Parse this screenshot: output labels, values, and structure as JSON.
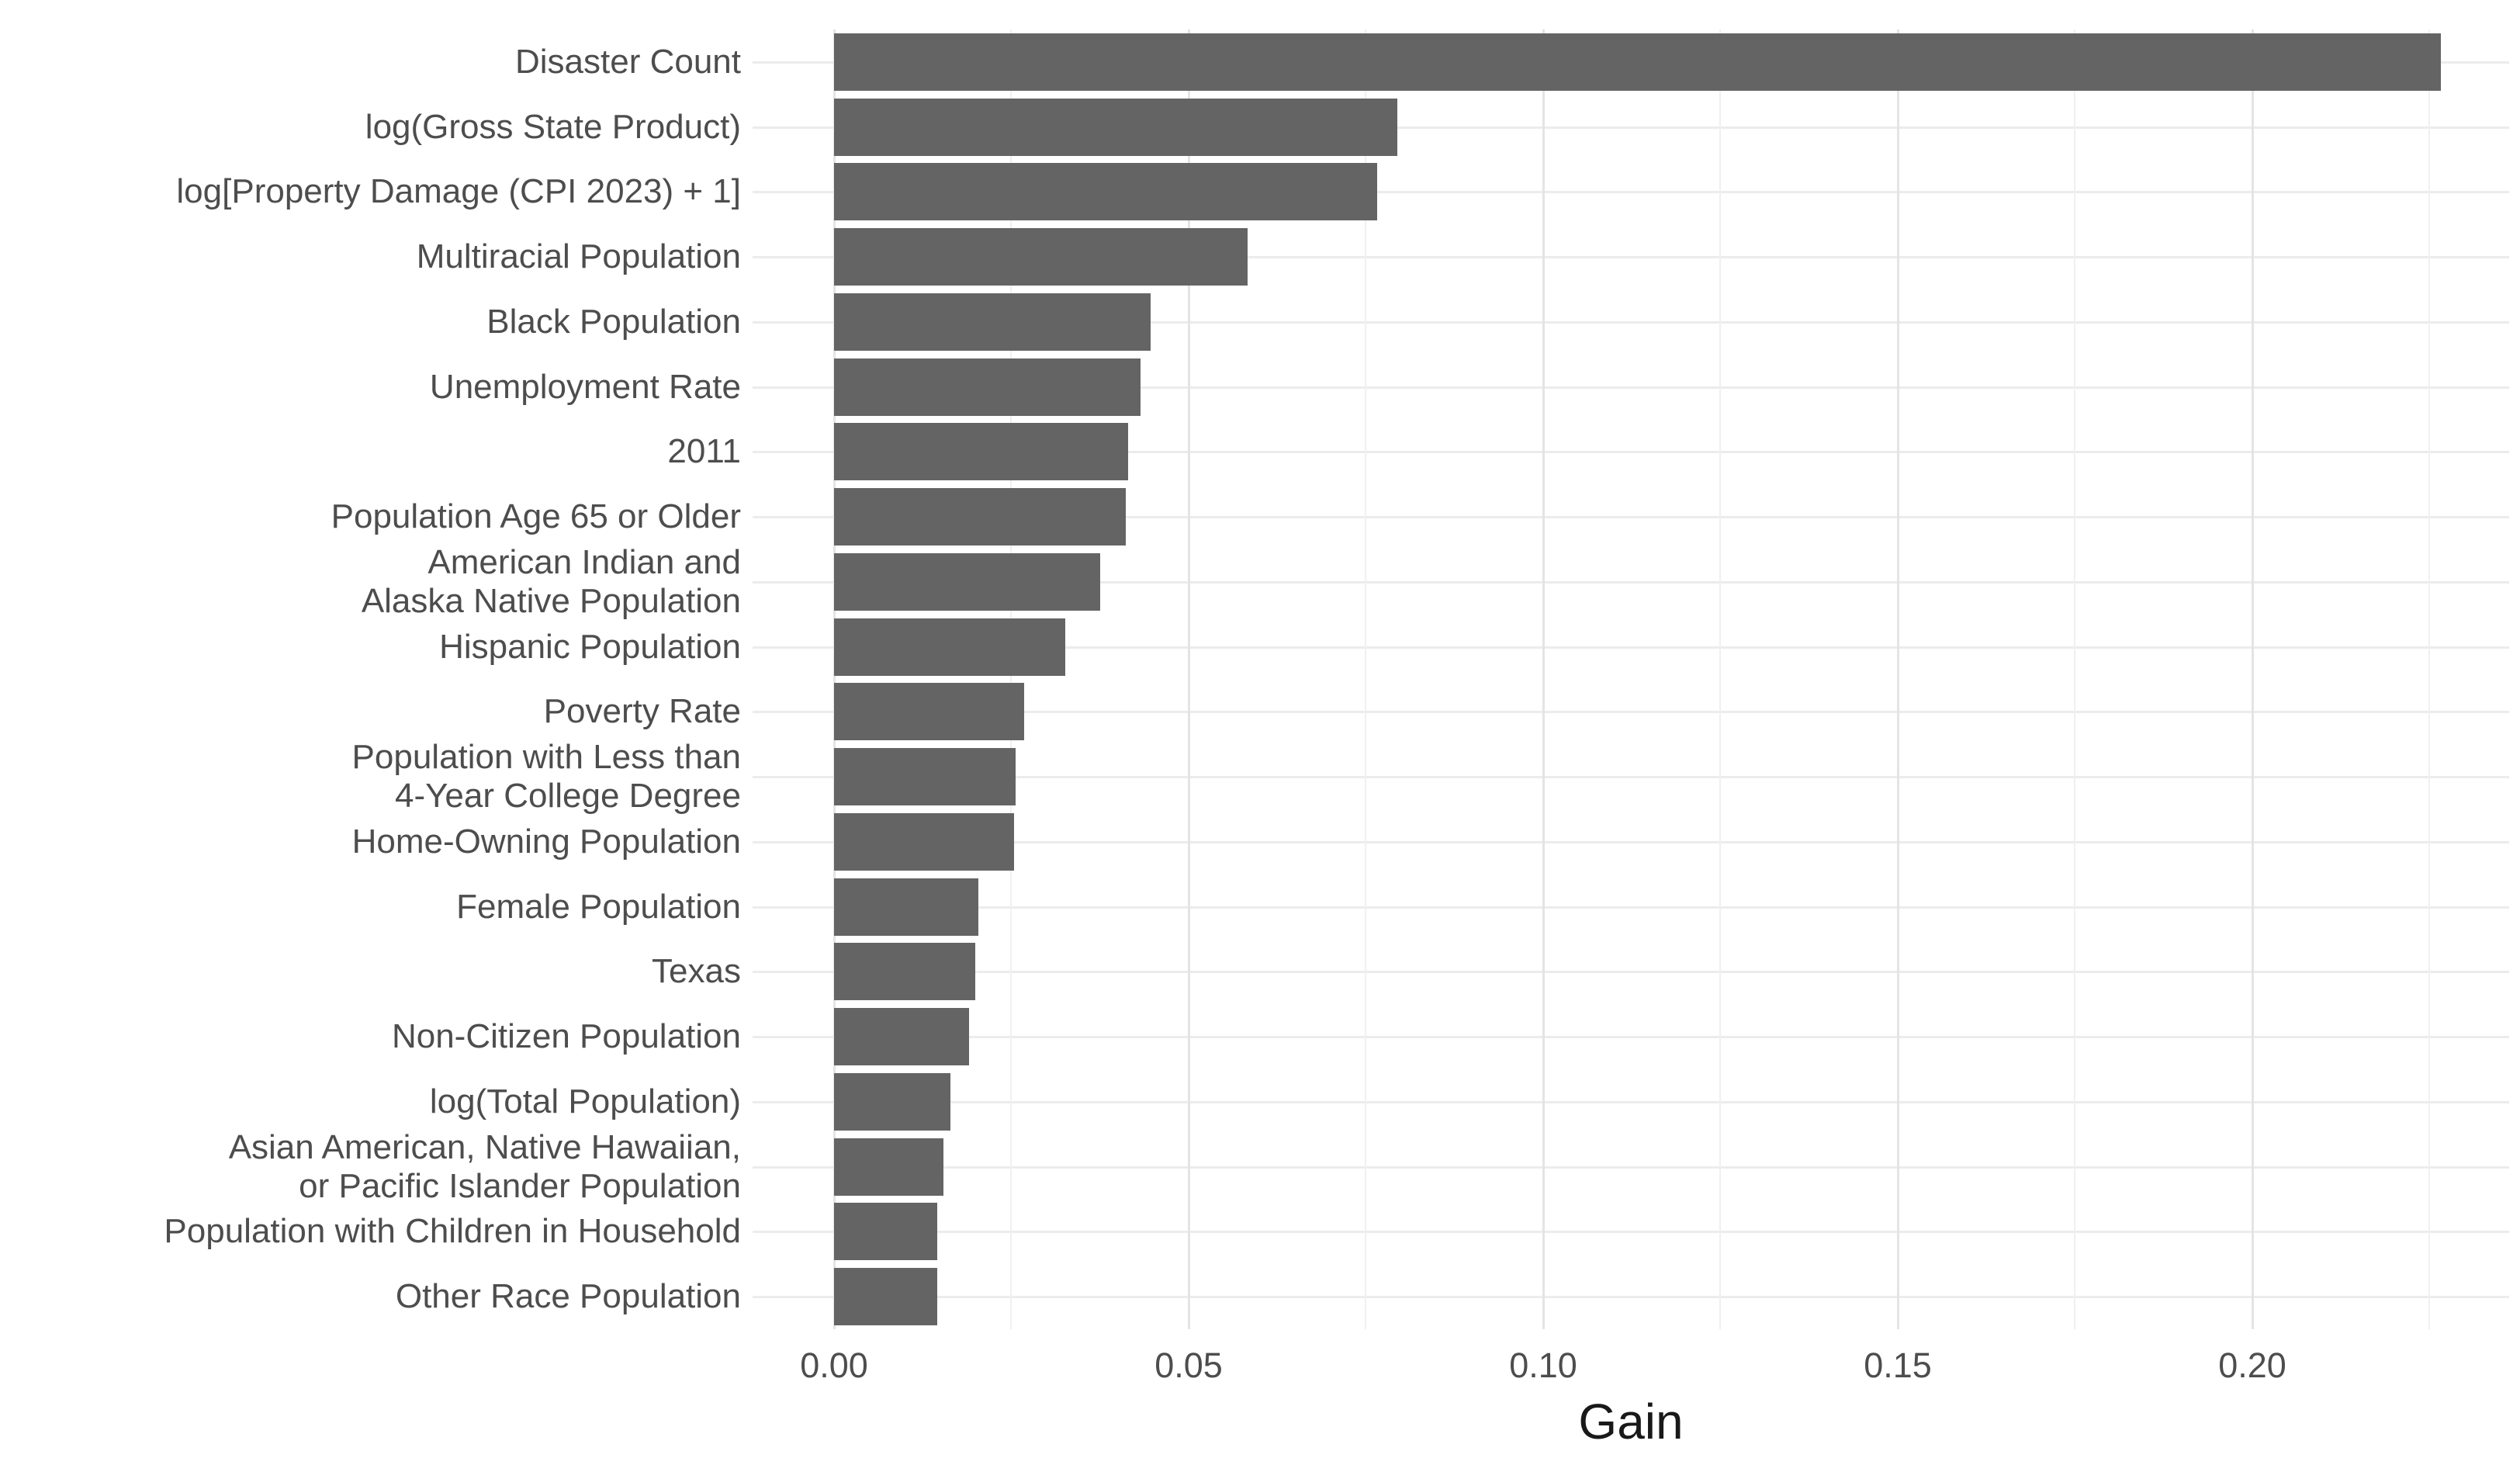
{
  "chart_data": {
    "type": "bar",
    "orientation": "horizontal",
    "title": "",
    "xlabel": "Gain",
    "ylabel": "",
    "categories": [
      "Disaster Count",
      "log(Gross State Product)",
      "log[Property Damage (CPI 2023) + 1]",
      "Multiracial Population",
      "Black Population",
      "Unemployment Rate",
      "2011",
      "Population Age 65 or Older",
      "American Indian and Alaska Native Population",
      "Hispanic Population",
      "Poverty Rate",
      "Population with Less than 4-Year College Degree",
      "Home-Owning Population",
      "Female Population",
      "Texas",
      "Non-Citizen Population",
      "log(Total Population)",
      "Asian American, Native Hawaiian, or Pacific Islander Population",
      "Population with Children in Household",
      "Other Race Population"
    ],
    "category_label_lines": [
      [
        "Disaster Count"
      ],
      [
        "log(Gross State Product)"
      ],
      [
        "log[Property Damage (CPI 2023) + 1]"
      ],
      [
        "Multiracial Population"
      ],
      [
        "Black Population"
      ],
      [
        "Unemployment Rate"
      ],
      [
        "2011"
      ],
      [
        "Population Age 65 or Older"
      ],
      [
        "American Indian and",
        "Alaska Native Population"
      ],
      [
        "Hispanic Population"
      ],
      [
        "Poverty Rate"
      ],
      [
        "Population with Less than",
        "4-Year College Degree"
      ],
      [
        "Home-Owning Population"
      ],
      [
        "Female Population"
      ],
      [
        "Texas"
      ],
      [
        "Non-Citizen Population"
      ],
      [
        "log(Total Population)"
      ],
      [
        "Asian American, Native Hawaiian,",
        "or Pacific Islander Population"
      ],
      [
        "Population with Children in Household"
      ],
      [
        "Other Race Population"
      ]
    ],
    "values": [
      0.2266,
      0.0795,
      0.0766,
      0.0583,
      0.0447,
      0.0432,
      0.0415,
      0.0411,
      0.0375,
      0.0326,
      0.0268,
      0.0256,
      0.0254,
      0.0204,
      0.0199,
      0.019,
      0.0164,
      0.0154,
      0.0146,
      0.0145
    ],
    "x_ticks": [
      0,
      0.05,
      0.1,
      0.15,
      0.2
    ],
    "x_tick_labels": [
      "0.00",
      "0.05",
      "0.10",
      "0.15",
      "0.20"
    ],
    "x_minor_gridlines": [
      0.025,
      0.075,
      0.125,
      0.175,
      0.225
    ],
    "xlim": [
      0,
      0.2363
    ],
    "grid": true,
    "legend_position": "none",
    "colors": {
      "bar": "#646464",
      "grid_major": "#E4E4E4",
      "grid_minor": "#F0F0F0",
      "grid_row": "#ECECEC",
      "axis_text": "#4D4D4D",
      "axis_title": "#191919",
      "background": "#FFFFFF"
    }
  }
}
